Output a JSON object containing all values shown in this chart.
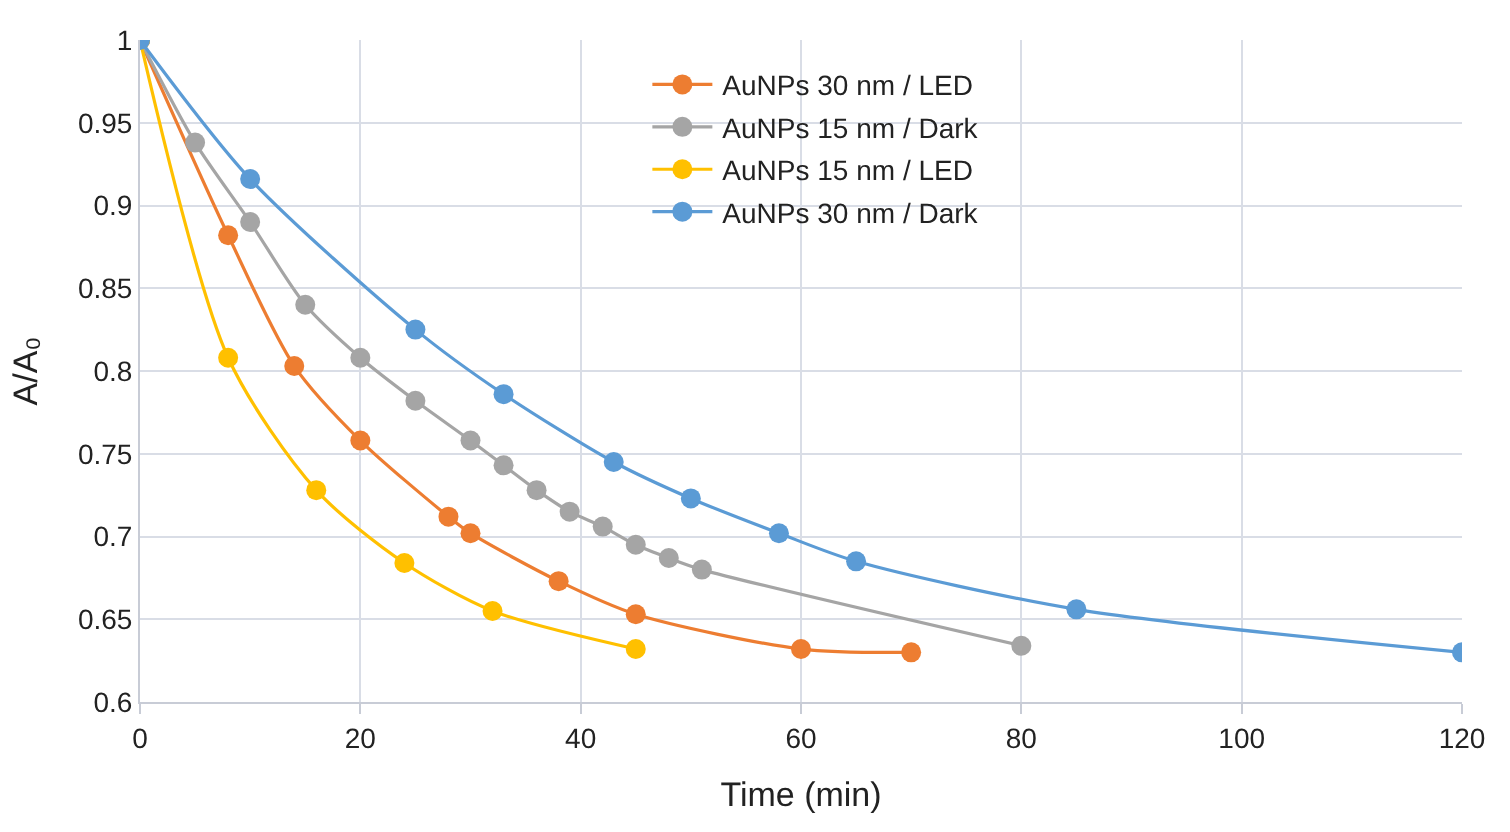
{
  "chart_data": {
    "type": "line",
    "xlabel": "Time (min)",
    "ylabel": "A/A₀",
    "xlim": [
      0,
      120
    ],
    "xticks": [
      0,
      20,
      40,
      60,
      80,
      100,
      120
    ],
    "ylim": [
      0.6,
      1
    ],
    "yticks": [
      0.6,
      0.65,
      0.7,
      0.75,
      0.8,
      0.85,
      0.9,
      0.95,
      1
    ],
    "grid": true,
    "legend": "top right",
    "marker": "circle",
    "line_style": "solid",
    "series": [
      {
        "name": "AuNPs 30 nm / LED",
        "color": "#ed7d31",
        "x": [
          0,
          8,
          14,
          20,
          28,
          30,
          38,
          45,
          60,
          70
        ],
        "values": [
          1,
          0.882,
          0.803,
          0.758,
          0.712,
          0.702,
          0.673,
          0.653,
          0.632,
          0.63
        ]
      },
      {
        "name": "AuNPs 15 nm / Dark",
        "color": "#a5a5a5",
        "x": [
          0,
          5,
          10,
          15,
          20,
          25,
          30,
          33,
          36,
          39,
          42,
          45,
          48,
          51,
          80
        ],
        "values": [
          1,
          0.938,
          0.89,
          0.84,
          0.808,
          0.782,
          0.758,
          0.743,
          0.728,
          0.715,
          0.706,
          0.695,
          0.687,
          0.68,
          0.634
        ]
      },
      {
        "name": "AuNPs 15 nm / LED",
        "color": "#ffc000",
        "x": [
          0,
          8,
          16,
          24,
          32,
          45
        ],
        "values": [
          1,
          0.808,
          0.728,
          0.684,
          0.655,
          0.632
        ]
      },
      {
        "name": "AuNPs 30 nm / Dark",
        "color": "#5b9bd5",
        "x": [
          0,
          10,
          25,
          33,
          43,
          50,
          58,
          65,
          85,
          120
        ],
        "values": [
          1,
          0.916,
          0.825,
          0.786,
          0.745,
          0.723,
          0.702,
          0.685,
          0.656,
          0.63
        ]
      }
    ]
  }
}
